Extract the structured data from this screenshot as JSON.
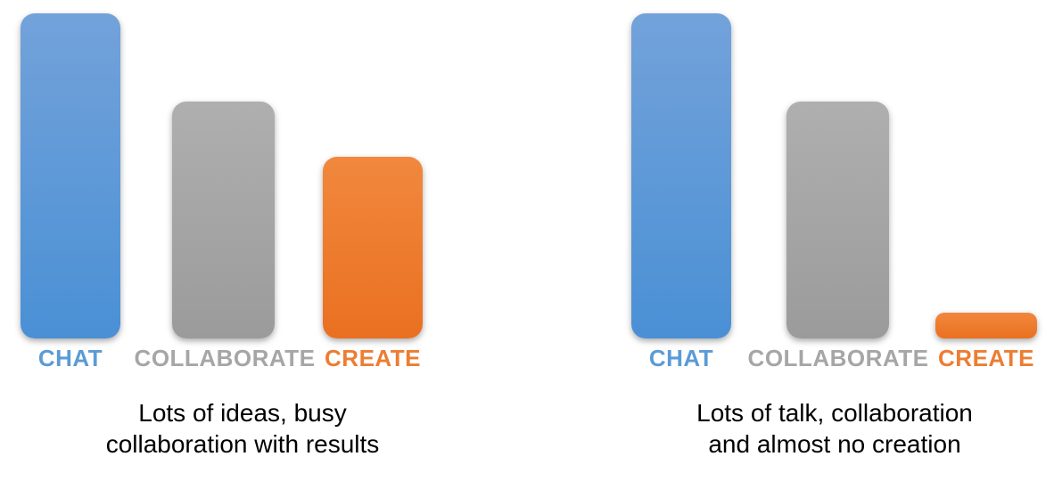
{
  "colors": {
    "background": "#FFFFFF",
    "chat": "#5B9BD5",
    "chat_gradient_top": "#73A2DA",
    "chat_gradient_bottom": "#4A90D5",
    "collaborate": "#A6A6A6",
    "collaborate_gradient_top": "#AFAFAF",
    "collaborate_gradient_bottom": "#9B9B9B",
    "create": "#ED7D31",
    "create_gradient_top": "#F1883D",
    "create_gradient_bottom": "#EA7021",
    "caption_text": "#000000"
  },
  "chart_data": [
    {
      "type": "bar",
      "title": "",
      "categories": [
        "CHAT",
        "COLLABORATE",
        "CREATE"
      ],
      "values": [
        100,
        73,
        56
      ],
      "ylim": [
        0,
        100
      ],
      "grid": false,
      "axes_visible": false,
      "legend": "none",
      "bar_colors": [
        "#5B9BD5",
        "#A6A6A6",
        "#ED7D31"
      ],
      "caption_lines": [
        "Lots of ideas, busy",
        "collaboration with results"
      ]
    },
    {
      "type": "bar",
      "title": "",
      "categories": [
        "CHAT",
        "COLLABORATE",
        "CREATE"
      ],
      "values": [
        100,
        73,
        8
      ],
      "ylim": [
        0,
        100
      ],
      "grid": false,
      "axes_visible": false,
      "legend": "none",
      "bar_colors": [
        "#5B9BD5",
        "#A6A6A6",
        "#ED7D31"
      ],
      "caption_lines": [
        "Lots of talk, collaboration",
        "and almost no creation"
      ]
    }
  ]
}
